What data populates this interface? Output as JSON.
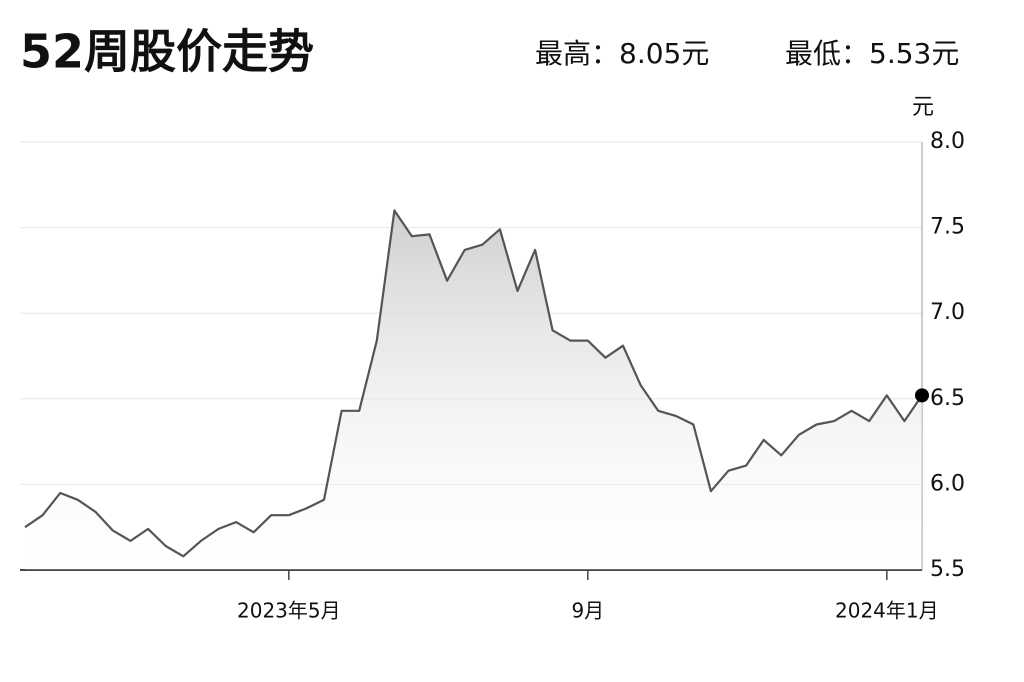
{
  "chart_data": {
    "type": "line",
    "title": "52周股价走势",
    "annotations": [
      "最高：8.05元",
      "最低：5.53元"
    ],
    "y_label": "元",
    "categories": [
      null,
      null,
      null,
      null,
      null,
      null,
      null,
      null,
      null,
      null,
      null,
      null,
      null,
      null,
      null,
      "2023年5月",
      null,
      null,
      null,
      null,
      null,
      null,
      null,
      null,
      null,
      null,
      null,
      null,
      null,
      null,
      null,
      null,
      "9月",
      null,
      null,
      null,
      null,
      null,
      null,
      null,
      null,
      null,
      null,
      null,
      null,
      null,
      null,
      null,
      null,
      "2024年1月",
      null,
      null
    ],
    "values": [
      5.75,
      5.82,
      5.95,
      5.91,
      5.84,
      5.73,
      5.67,
      5.74,
      5.64,
      5.58,
      5.67,
      5.74,
      5.78,
      5.72,
      5.82,
      5.82,
      5.86,
      5.91,
      6.43,
      6.43,
      6.84,
      7.6,
      7.45,
      7.46,
      7.19,
      7.37,
      7.4,
      7.49,
      7.13,
      7.37,
      6.9,
      6.84,
      6.84,
      6.74,
      6.81,
      6.58,
      6.43,
      6.4,
      6.35,
      5.96,
      6.08,
      6.11,
      6.26,
      6.17,
      6.29,
      6.35,
      6.37,
      6.43,
      6.37,
      6.52,
      6.37,
      6.52
    ],
    "color": "#555555",
    "ylim": [
      5.5,
      8
    ],
    "yticks": [
      5.5,
      {
        "value": 6,
        "label": "6.0"
      },
      6.5,
      {
        "value": 7,
        "label": "7.0"
      },
      7.5,
      {
        "value": 8,
        "label": "8.0"
      }
    ],
    "grid": true
  }
}
